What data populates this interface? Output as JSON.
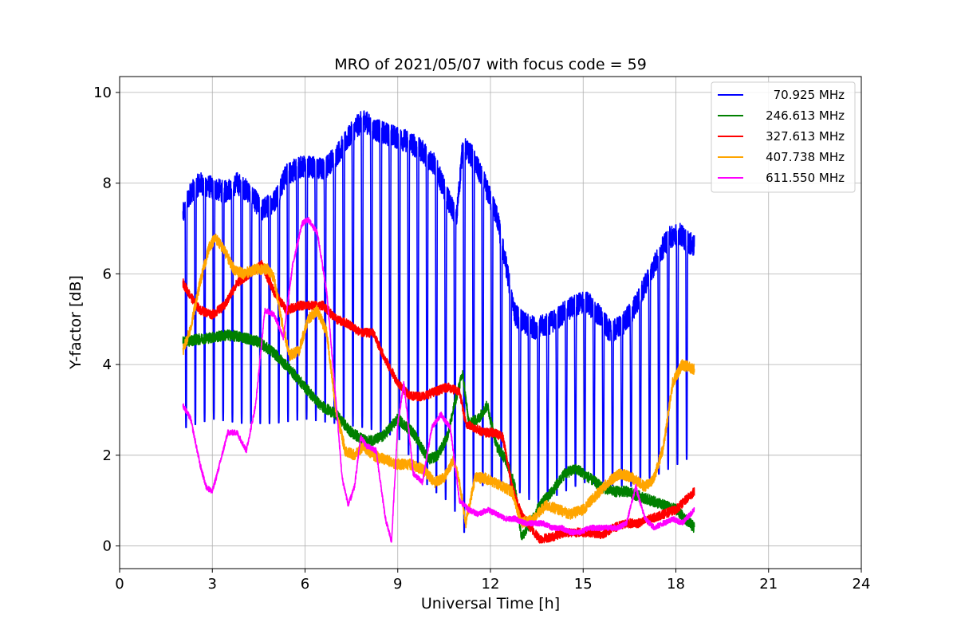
{
  "chart_data": {
    "type": "line",
    "title": "MRO of 2021/05/07 with focus code = 59",
    "xlabel": "Universal Time [h]",
    "ylabel": "Y-factor [dB]",
    "xlim": [
      0,
      24
    ],
    "ylim": [
      -0.5,
      10.35
    ],
    "xticks": [
      0,
      3,
      6,
      9,
      12,
      15,
      18,
      21,
      24
    ],
    "yticks": [
      0,
      2,
      4,
      6,
      8,
      10
    ],
    "grid": true,
    "legend_position": "top-right",
    "series": [
      {
        "name": "70.925 MHz",
        "color": "#0000ff",
        "noise": 0.25,
        "dips": {
          "start": 2.15,
          "end": 18.6,
          "spacing": 0.3,
          "width": 0.06
        },
        "dip_depths": [
          [
            2.1,
            2.6
          ],
          [
            3.0,
            2.8
          ],
          [
            4.0,
            2.7
          ],
          [
            5.0,
            2.7
          ],
          [
            6.0,
            2.8
          ],
          [
            7.0,
            2.7
          ],
          [
            8.0,
            2.6
          ],
          [
            9.0,
            2.4
          ],
          [
            10.0,
            1.3
          ],
          [
            10.8,
            0.9
          ],
          [
            11.1,
            0.1
          ],
          [
            11.4,
            1.3
          ],
          [
            12.5,
            1.4
          ],
          [
            13.5,
            0.9
          ],
          [
            15.0,
            1.4
          ],
          [
            16.5,
            1.3
          ],
          [
            17.5,
            1.6
          ],
          [
            18.6,
            2.0
          ]
        ],
        "x": [
          2.05,
          2.3,
          2.6,
          3.0,
          3.4,
          3.8,
          4.2,
          4.6,
          5.0,
          5.4,
          6.0,
          6.6,
          7.0,
          7.3,
          7.6,
          7.9,
          8.2,
          8.6,
          9.0,
          9.4,
          9.8,
          10.2,
          10.6,
          10.9,
          11.1,
          11.4,
          11.8,
          12.2,
          12.5,
          12.8,
          13.1,
          13.5,
          13.9,
          14.3,
          14.7,
          15.1,
          15.5,
          15.9,
          16.3,
          16.7,
          17.1,
          17.5,
          17.8,
          18.1,
          18.4,
          18.6
        ],
        "y": [
          7.3,
          7.8,
          8.0,
          7.9,
          7.8,
          8.0,
          7.8,
          7.4,
          7.6,
          8.2,
          8.4,
          8.3,
          8.6,
          8.9,
          9.2,
          9.4,
          9.2,
          9.1,
          9.0,
          8.9,
          8.7,
          8.4,
          7.7,
          7.2,
          8.8,
          8.6,
          8.0,
          7.3,
          6.2,
          5.1,
          4.9,
          4.8,
          4.9,
          5.1,
          5.3,
          5.4,
          5.1,
          4.7,
          4.9,
          5.3,
          5.9,
          6.5,
          6.8,
          6.9,
          6.7,
          6.6
        ]
      },
      {
        "name": "246.613 MHz",
        "color": "#008000",
        "noise": 0.12,
        "x": [
          2.05,
          2.5,
          3.0,
          3.5,
          4.0,
          4.5,
          5.0,
          5.5,
          6.0,
          6.5,
          7.0,
          7.5,
          8.0,
          8.5,
          9.0,
          9.5,
          10.0,
          10.3,
          10.6,
          10.9,
          11.1,
          11.3,
          11.6,
          11.9,
          12.2,
          12.5,
          12.8,
          13.0,
          13.3,
          13.6,
          14.0,
          14.4,
          14.8,
          15.2,
          15.6,
          16.0,
          16.4,
          16.8,
          17.2,
          17.6,
          18.0,
          18.3,
          18.6
        ],
        "y": [
          4.5,
          4.55,
          4.6,
          4.65,
          4.6,
          4.5,
          4.25,
          3.9,
          3.5,
          3.1,
          2.9,
          2.5,
          2.3,
          2.4,
          2.8,
          2.5,
          1.9,
          2.0,
          2.4,
          3.3,
          3.8,
          2.7,
          2.8,
          3.1,
          2.2,
          1.9,
          1.3,
          0.2,
          0.5,
          0.9,
          1.2,
          1.6,
          1.7,
          1.5,
          1.3,
          1.2,
          1.2,
          1.1,
          1.0,
          0.9,
          0.8,
          0.6,
          0.4
        ]
      },
      {
        "name": "327.613 MHz",
        "color": "#ff0000",
        "noise": 0.1,
        "x": [
          2.05,
          2.3,
          2.6,
          3.0,
          3.4,
          3.8,
          4.2,
          4.6,
          5.0,
          5.4,
          5.8,
          6.2,
          6.6,
          7.0,
          7.4,
          7.8,
          8.2,
          8.6,
          9.0,
          9.4,
          9.8,
          10.2,
          10.6,
          11.0,
          11.2,
          11.5,
          11.8,
          12.1,
          12.4,
          12.7,
          13.0,
          13.3,
          13.6,
          14.0,
          14.4,
          14.8,
          15.2,
          15.6,
          16.0,
          16.4,
          16.8,
          17.2,
          17.6,
          18.0,
          18.3,
          18.6
        ],
        "y": [
          5.8,
          5.5,
          5.2,
          5.1,
          5.3,
          5.8,
          6.0,
          6.2,
          5.6,
          5.2,
          5.3,
          5.3,
          5.3,
          5.0,
          4.9,
          4.7,
          4.7,
          4.1,
          3.6,
          3.3,
          3.3,
          3.4,
          3.5,
          3.4,
          2.7,
          2.6,
          2.5,
          2.5,
          2.4,
          1.3,
          0.7,
          0.4,
          0.15,
          0.2,
          0.3,
          0.3,
          0.3,
          0.25,
          0.4,
          0.5,
          0.5,
          0.6,
          0.7,
          0.8,
          1.0,
          1.2
        ]
      },
      {
        "name": "407.738 MHz",
        "color": "#ffa500",
        "noise": 0.12,
        "x": [
          2.05,
          2.3,
          2.6,
          2.9,
          3.1,
          3.4,
          3.7,
          4.0,
          4.4,
          4.8,
          5.0,
          5.2,
          5.5,
          5.8,
          6.1,
          6.4,
          6.7,
          7.0,
          7.3,
          7.6,
          7.9,
          8.2,
          8.6,
          9.0,
          9.4,
          9.8,
          10.2,
          10.5,
          10.8,
          11.0,
          11.2,
          11.5,
          11.8,
          12.1,
          12.4,
          12.7,
          13.0,
          13.4,
          13.8,
          14.2,
          14.6,
          15.0,
          15.4,
          15.8,
          16.2,
          16.6,
          17.0,
          17.3,
          17.6,
          17.9,
          18.2,
          18.6
        ],
        "y": [
          4.3,
          4.8,
          5.8,
          6.6,
          6.8,
          6.5,
          6.1,
          6.0,
          6.1,
          6.1,
          5.9,
          5.1,
          4.2,
          4.3,
          5.0,
          5.2,
          4.7,
          3.0,
          2.1,
          2.0,
          2.2,
          2.0,
          1.9,
          1.8,
          1.8,
          1.7,
          1.4,
          1.5,
          1.9,
          1.4,
          0.5,
          1.5,
          1.5,
          1.4,
          1.3,
          1.2,
          0.5,
          0.6,
          0.9,
          0.8,
          0.7,
          0.8,
          1.1,
          1.4,
          1.6,
          1.5,
          1.3,
          1.5,
          2.2,
          3.6,
          4.0,
          3.9
        ]
      },
      {
        "name": "611.550 MHz",
        "color": "#ff00ff",
        "noise": 0.06,
        "x": [
          2.05,
          2.3,
          2.6,
          2.8,
          3.0,
          3.2,
          3.5,
          3.8,
          4.1,
          4.4,
          4.7,
          5.0,
          5.3,
          5.6,
          5.9,
          6.1,
          6.4,
          6.7,
          7.0,
          7.2,
          7.4,
          7.6,
          7.8,
          8.0,
          8.3,
          8.6,
          8.8,
          9.0,
          9.2,
          9.5,
          9.8,
          10.1,
          10.4,
          10.7,
          11.0,
          11.3,
          11.6,
          11.9,
          12.2,
          12.5,
          12.8,
          13.1,
          13.4,
          13.7,
          14.0,
          14.3,
          14.6,
          14.9,
          15.2,
          15.5,
          15.8,
          16.1,
          16.4,
          16.7,
          17.0,
          17.3,
          17.6,
          17.9,
          18.2,
          18.6
        ],
        "y": [
          3.1,
          2.8,
          1.8,
          1.3,
          1.2,
          1.7,
          2.5,
          2.5,
          2.1,
          3.1,
          5.2,
          5.1,
          4.6,
          6.2,
          7.1,
          7.2,
          6.9,
          5.6,
          3.2,
          1.5,
          0.9,
          1.3,
          2.4,
          2.2,
          2.1,
          0.6,
          0.1,
          2.7,
          3.6,
          1.6,
          1.4,
          2.6,
          2.9,
          2.6,
          1.0,
          0.8,
          0.7,
          0.8,
          0.7,
          0.6,
          0.6,
          0.5,
          0.5,
          0.5,
          0.4,
          0.4,
          0.3,
          0.3,
          0.4,
          0.4,
          0.4,
          0.4,
          0.5,
          1.3,
          0.6,
          0.4,
          0.5,
          0.6,
          0.5,
          0.8
        ]
      }
    ]
  }
}
